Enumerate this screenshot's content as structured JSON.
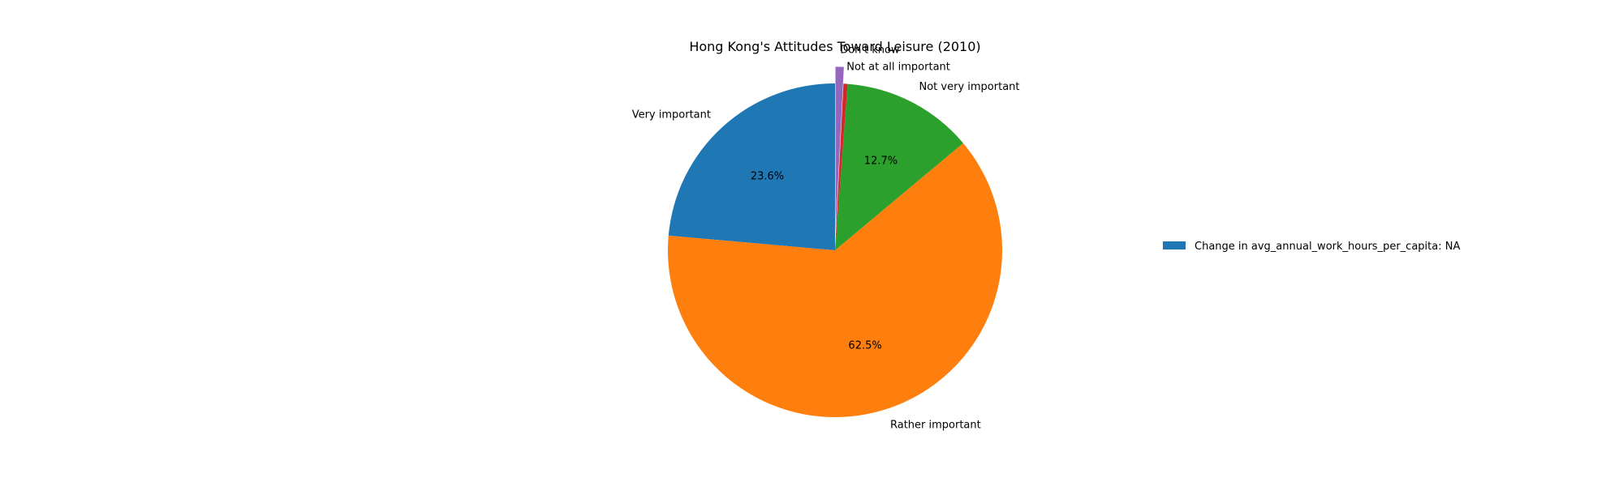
{
  "chart_data": {
    "type": "pie",
    "title": "Hong Kong's Attitudes Toward Leisure (2010)",
    "start_angle": 90,
    "direction": "counterclockwise",
    "slices": [
      {
        "label": "Very important",
        "value": 23.6,
        "pct_label": "23.6%",
        "color": "#1f77b4",
        "exploded": false
      },
      {
        "label": "Rather important",
        "value": 62.5,
        "pct_label": "62.5%",
        "color": "#ff7f0e",
        "exploded": false
      },
      {
        "label": "Not very important",
        "value": 12.7,
        "pct_label": "12.7%",
        "color": "#2ca02c",
        "exploded": false
      },
      {
        "label": "Not at all important",
        "value": 0.4,
        "pct_label": "",
        "color": "#d62728",
        "exploded": false
      },
      {
        "label": "Don't know",
        "value": 0.8,
        "pct_label": "",
        "color": "#9467bd",
        "exploded": true
      }
    ],
    "legend": {
      "placement": "right",
      "entries": [
        {
          "label": "Change in avg_annual_work_hours_per_capita: NA",
          "color": "#1f77b4"
        }
      ]
    }
  }
}
